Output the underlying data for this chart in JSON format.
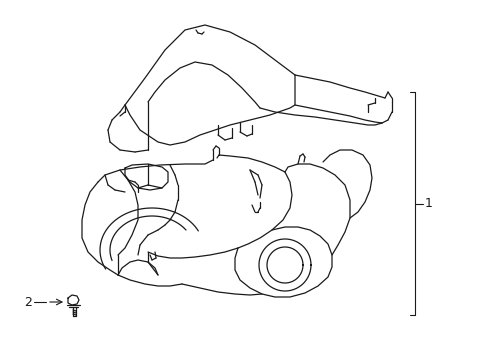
{
  "background_color": "#ffffff",
  "line_color": "#1a1a1a",
  "line_width": 0.9,
  "label_1": "1",
  "label_2": "2",
  "label_fontsize": 9,
  "fig_width": 4.89,
  "fig_height": 3.6,
  "dpi": 100,
  "callout_line_color": "#1a1a1a",
  "callout_lw": 0.8
}
